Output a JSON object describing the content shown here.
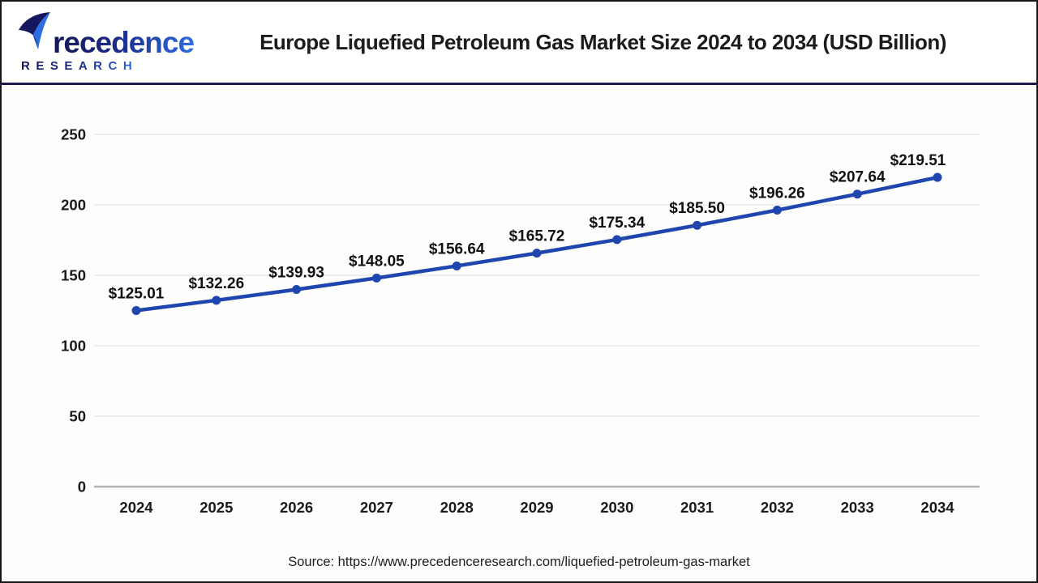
{
  "header": {
    "title": "Europe Liquefied Petroleum Gas Market Size 2024 to 2034 (USD Billion)",
    "logo": {
      "wordmark": "recedence",
      "research_label": "RESEARCH"
    }
  },
  "chart_data": {
    "type": "line",
    "title": "Europe Liquefied Petroleum Gas Market Size 2024 to 2034 (USD Billion)",
    "unit": "USD Billion",
    "categories": [
      "2024",
      "2025",
      "2026",
      "2027",
      "2028",
      "2029",
      "2030",
      "2031",
      "2032",
      "2033",
      "2034"
    ],
    "series": [
      {
        "name": "Europe Liquefied Petroleum Gas Market Size (USD Billion)",
        "values": [
          125.01,
          132.26,
          139.93,
          148.05,
          156.64,
          165.72,
          175.34,
          185.5,
          196.26,
          207.64,
          219.51
        ]
      }
    ],
    "point_labels": [
      "$125.01",
      "$132.26",
      "$139.93",
      "$148.05",
      "$156.64",
      "$165.72",
      "$175.34",
      "$185.50",
      "$196.26",
      "$207.64",
      "$219.51"
    ],
    "xlabel": "",
    "ylabel": "",
    "ylim": [
      0,
      250
    ],
    "yticks": [
      0,
      50,
      100,
      150,
      200,
      250
    ],
    "grid": true,
    "legend_position": "none",
    "colors": {
      "line": "#1e46ae",
      "marker": "#1e46ae",
      "gridline": "#e9e9e9",
      "axis_line": "#b3b3b3",
      "tick_label": "#1a1a1a",
      "point_label": "#111111"
    }
  },
  "footer": {
    "source": "Source: https://www.precedenceresearch.com/liquefied-petroleum-gas-market"
  },
  "colors": {
    "header_separator_navy": "#1b1b4e",
    "brand_navy": "#161654",
    "brand_blue": "#2e6de0",
    "page_border": "#161616"
  }
}
